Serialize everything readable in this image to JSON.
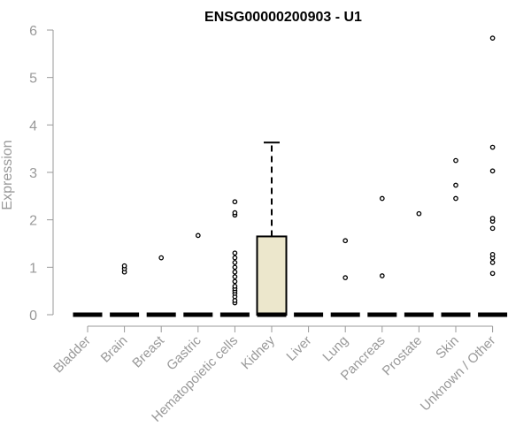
{
  "chart_data": {
    "type": "box",
    "title": "ENSG00000200903 - U1",
    "ylabel": "Expression",
    "xlabel": "",
    "ylim": [
      0,
      6
    ],
    "yticks": [
      0,
      1,
      2,
      3,
      4,
      5,
      6
    ],
    "ytick_labels": [
      "0",
      "1",
      "2",
      "3",
      "4",
      "5",
      "6"
    ],
    "grid": false,
    "legend": "none",
    "colors": {
      "box_fill": "#ece7cc",
      "axis": "#999999",
      "text": "#999999",
      "title": "#000000"
    },
    "categories": [
      "Bladder",
      "Brain",
      "Breast",
      "Gastric",
      "Hematopoietic cells",
      "Kidney",
      "Liver",
      "Lung",
      "Pancreas",
      "Prostate",
      "Skin",
      "Unknown / Other"
    ],
    "boxes": [
      {
        "category": "Bladder",
        "q1": 0,
        "median": 0,
        "q3": 0,
        "whisker_low": 0,
        "whisker_high": 0,
        "outliers": []
      },
      {
        "category": "Brain",
        "q1": 0,
        "median": 0,
        "q3": 0,
        "whisker_low": 0,
        "whisker_high": 0,
        "outliers": [
          0.9,
          0.97,
          1.03
        ]
      },
      {
        "category": "Breast",
        "q1": 0,
        "median": 0,
        "q3": 0,
        "whisker_low": 0,
        "whisker_high": 0,
        "outliers": [
          1.2
        ]
      },
      {
        "category": "Gastric",
        "q1": 0,
        "median": 0,
        "q3": 0,
        "whisker_low": 0,
        "whisker_high": 0,
        "outliers": [
          1.67
        ]
      },
      {
        "category": "Hematopoietic cells",
        "q1": 0,
        "median": 0,
        "q3": 0,
        "whisker_low": 0,
        "whisker_high": 0,
        "outliers": [
          0.25,
          0.3,
          0.38,
          0.45,
          0.5,
          0.55,
          0.6,
          0.7,
          0.8,
          0.9,
          1.0,
          1.1,
          1.2,
          1.3,
          2.1,
          2.15,
          2.38
        ]
      },
      {
        "category": "Kidney",
        "q1": 0,
        "median": 0,
        "q3": 1.65,
        "whisker_low": 0,
        "whisker_high": 3.63,
        "outliers": []
      },
      {
        "category": "Liver",
        "q1": 0,
        "median": 0,
        "q3": 0,
        "whisker_low": 0,
        "whisker_high": 0,
        "outliers": []
      },
      {
        "category": "Lung",
        "q1": 0,
        "median": 0,
        "q3": 0,
        "whisker_low": 0,
        "whisker_high": 0,
        "outliers": [
          0.78,
          1.56
        ]
      },
      {
        "category": "Pancreas",
        "q1": 0,
        "median": 0,
        "q3": 0,
        "whisker_low": 0,
        "whisker_high": 0,
        "outliers": [
          0.82,
          2.45
        ]
      },
      {
        "category": "Prostate",
        "q1": 0,
        "median": 0,
        "q3": 0,
        "whisker_low": 0,
        "whisker_high": 0,
        "outliers": [
          2.13
        ]
      },
      {
        "category": "Skin",
        "q1": 0,
        "median": 0,
        "q3": 0,
        "whisker_low": 0,
        "whisker_high": 0,
        "outliers": [
          2.45,
          2.73,
          3.25
        ]
      },
      {
        "category": "Unknown / Other",
        "q1": 0,
        "median": 0,
        "q3": 0,
        "whisker_low": 0,
        "whisker_high": 0,
        "outliers": [
          0.87,
          1.1,
          1.2,
          1.27,
          1.82,
          1.97,
          2.03,
          3.03,
          3.53,
          5.83
        ]
      }
    ]
  }
}
